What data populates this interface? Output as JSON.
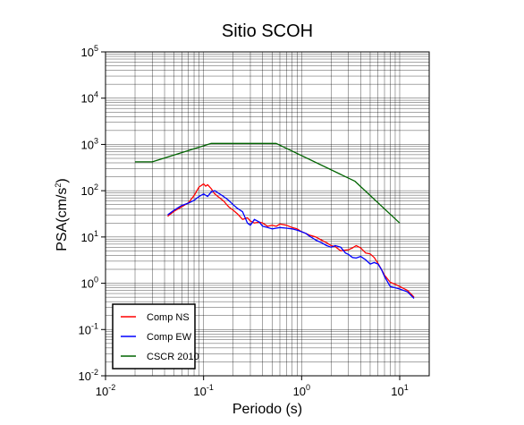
{
  "chart_data": {
    "type": "line",
    "title": "Sitio SCOH",
    "xlabel": "Periodo (s)",
    "ylabel": "PSA(cm/s",
    "ylabel_sup": "2",
    "ylabel_suffix": ")",
    "x_scale": "log",
    "y_scale": "log",
    "xlim": [
      0.01,
      20
    ],
    "ylim": [
      0.01,
      100000
    ],
    "grid": true,
    "legend_position": "bottom-left",
    "x_ticks": [
      {
        "base": "10",
        "exp": "-2",
        "value": 0.01
      },
      {
        "base": "10",
        "exp": "-1",
        "value": 0.1
      },
      {
        "base": "10",
        "exp": "0",
        "value": 1
      },
      {
        "base": "10",
        "exp": "1",
        "value": 10
      }
    ],
    "y_ticks": [
      {
        "base": "10",
        "exp": "-2",
        "value": 0.01
      },
      {
        "base": "10",
        "exp": "-1",
        "value": 0.1
      },
      {
        "base": "10",
        "exp": "0",
        "value": 1
      },
      {
        "base": "10",
        "exp": "1",
        "value": 10
      },
      {
        "base": "10",
        "exp": "2",
        "value": 100
      },
      {
        "base": "10",
        "exp": "3",
        "value": 1000
      },
      {
        "base": "10",
        "exp": "4",
        "value": 10000
      },
      {
        "base": "10",
        "exp": "5",
        "value": 100000
      }
    ],
    "series": [
      {
        "name": "Comp NS",
        "color": "#ff0000",
        "x": [
          0.043,
          0.05,
          0.06,
          0.07,
          0.08,
          0.09,
          0.1,
          0.105,
          0.11,
          0.12,
          0.13,
          0.14,
          0.16,
          0.18,
          0.2,
          0.22,
          0.25,
          0.28,
          0.3,
          0.33,
          0.37,
          0.4,
          0.45,
          0.5,
          0.55,
          0.6,
          0.7,
          0.8,
          0.9,
          1.0,
          1.1,
          1.2,
          1.4,
          1.6,
          1.8,
          2.0,
          2.2,
          2.5,
          2.8,
          3.0,
          3.3,
          3.6,
          4.0,
          4.5,
          5.0,
          5.5,
          6.0,
          6.5,
          7.0,
          8.0,
          9.0,
          10.0,
          12.0,
          14.0
        ],
        "y": [
          28,
          36,
          45,
          55,
          78,
          120,
          140,
          125,
          135,
          110,
          85,
          75,
          60,
          45,
          38,
          32,
          24,
          26,
          22,
          20,
          21,
          20,
          17,
          18,
          17,
          19,
          18,
          16,
          15,
          13,
          12,
          11,
          10,
          8.5,
          7.5,
          6.5,
          6.2,
          5.0,
          5.2,
          5.3,
          5.8,
          6.5,
          5.8,
          4.5,
          4.3,
          3.6,
          2.7,
          2.0,
          1.5,
          1.05,
          0.95,
          0.85,
          0.7,
          0.5
        ]
      },
      {
        "name": "Comp EW",
        "color": "#0000ff",
        "x": [
          0.043,
          0.05,
          0.06,
          0.07,
          0.08,
          0.09,
          0.1,
          0.11,
          0.12,
          0.13,
          0.14,
          0.16,
          0.18,
          0.2,
          0.22,
          0.25,
          0.28,
          0.3,
          0.33,
          0.37,
          0.4,
          0.45,
          0.5,
          0.55,
          0.6,
          0.7,
          0.8,
          0.9,
          1.0,
          1.1,
          1.2,
          1.4,
          1.6,
          1.8,
          2.0,
          2.2,
          2.5,
          2.8,
          3.0,
          3.3,
          3.6,
          4.0,
          4.5,
          5.0,
          5.5,
          6.0,
          6.5,
          7.0,
          8.0,
          9.0,
          10.0,
          12.0,
          14.0
        ],
        "y": [
          30,
          38,
          48,
          54,
          62,
          75,
          85,
          75,
          95,
          100,
          90,
          75,
          62,
          50,
          42,
          35,
          20,
          18,
          24,
          21,
          17,
          16,
          15,
          15.5,
          16,
          15.5,
          15,
          14,
          13,
          12,
          10.5,
          8.5,
          7.5,
          6.5,
          6.0,
          6.5,
          6.0,
          4.5,
          4.2,
          3.6,
          3.5,
          3.8,
          3.2,
          2.6,
          2.8,
          2.6,
          2.0,
          1.4,
          0.85,
          0.8,
          0.75,
          0.65,
          0.47
        ]
      },
      {
        "name": "CSCR 2010",
        "color": "#006400",
        "x": [
          0.02,
          0.03,
          0.12,
          0.55,
          3.5,
          10.0
        ],
        "y": [
          420,
          420,
          1050,
          1050,
          160,
          20
        ]
      }
    ]
  }
}
